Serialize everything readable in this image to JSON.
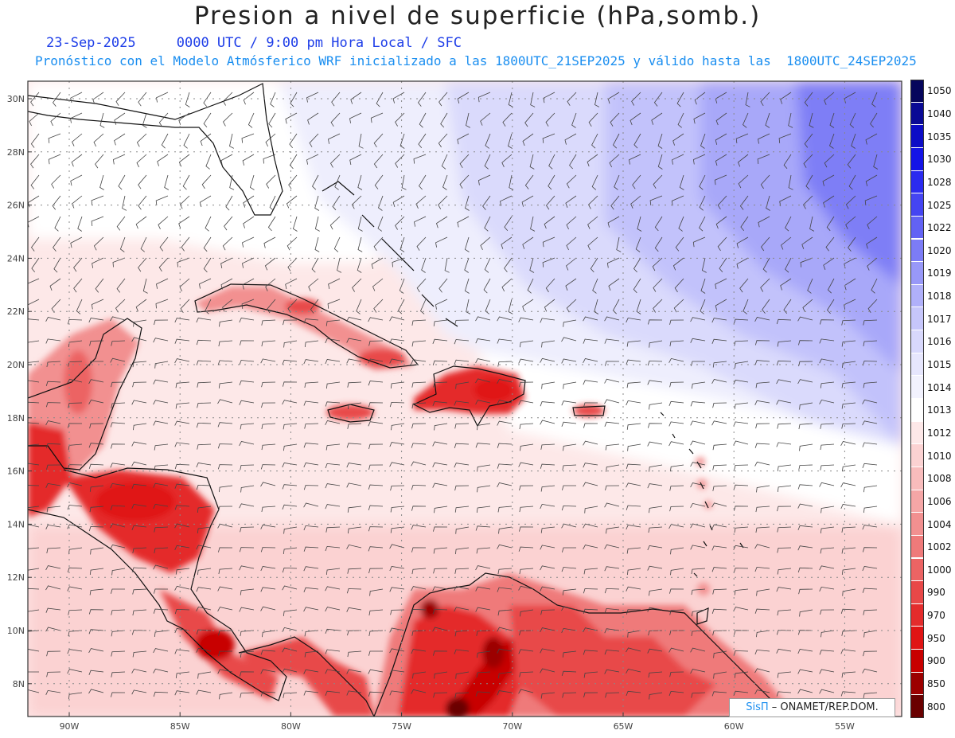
{
  "header": {
    "title": "Presion a nivel de superficie (hPa,somb.)",
    "date_line": "23-Sep-2025     0000 UTC / 9:00 pm Hora Local / SFC",
    "forecast_line": "Pronóstico con el Modelo Atmósferico WRF inicializado a las 1800UTC_21SEP2025 y válido hasta las  1800UTC_24SEP2025"
  },
  "map": {
    "lat_labels": [
      "30N",
      "28N",
      "26N",
      "24N",
      "22N",
      "20N",
      "18N",
      "16N",
      "14N",
      "12N",
      "10N",
      "8N"
    ],
    "lon_labels": [
      "90W",
      "85W",
      "80W",
      "75W",
      "70W",
      "65W",
      "60W",
      "55W"
    ],
    "features": [
      "wind-barbs",
      "coastlines",
      "pressure-shading"
    ]
  },
  "colorbar": {
    "levels": [
      "1050",
      "1040",
      "1035",
      "1030",
      "1028",
      "1025",
      "1022",
      "1020",
      "1019",
      "1018",
      "1017",
      "1016",
      "1015",
      "1014",
      "1013",
      "1012",
      "1010",
      "1008",
      "1006",
      "1004",
      "1002",
      "1000",
      "990",
      "970",
      "950",
      "900",
      "850",
      "800"
    ],
    "colors": [
      "#06065c",
      "#0a0a95",
      "#0c0cc6",
      "#1414e6",
      "#2b2bf0",
      "#4545f2",
      "#6262f4",
      "#7c7cf6",
      "#9898f8",
      "#b0b0fa",
      "#c6c6fb",
      "#d8d8fc",
      "#e6e6fd",
      "#f2f2fe",
      "#ffffff",
      "#fde8e8",
      "#fbd2d2",
      "#f8bcbc",
      "#f5a6a6",
      "#f29090",
      "#ef7a7a",
      "#ec6464",
      "#e84848",
      "#e42c2c",
      "#e01414",
      "#c80000",
      "#9c0000",
      "#6a0000"
    ]
  },
  "credit": {
    "sis": "SisΠ",
    "org": " – ONAMET/REP.DOM."
  }
}
